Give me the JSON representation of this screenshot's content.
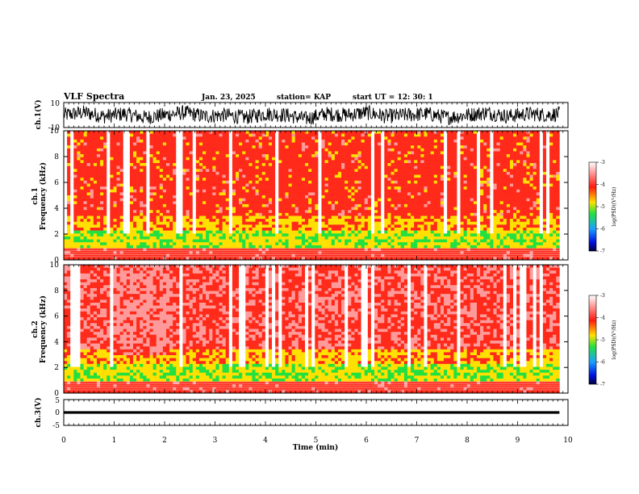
{
  "header": {
    "title": "VLF Spectra",
    "date": "Jan. 23, 2025",
    "station": "station= KAP",
    "start": "start  UT =   12: 30: 1"
  },
  "colors": {
    "spectrogram": [
      "#ffffff",
      "#ff9a9a",
      "#ff2a1a",
      "#ffe000",
      "#22e040",
      "#1aa0ff",
      "#0000a0"
    ],
    "trace": "#000000",
    "axes": "#000000"
  },
  "chart_data": [
    {
      "type": "line",
      "panel": "ch1-waveform",
      "ylabel": "ch.1(V)",
      "ylim": [
        -10,
        10
      ],
      "yticks": [
        "10",
        "-10"
      ],
      "xlim": [
        0,
        10
      ],
      "series": [
        {
          "x": [
            0,
            0.4,
            0.8,
            1.2,
            1.6,
            2.0,
            2.4,
            2.8,
            3.2,
            3.6,
            4.0,
            4.4,
            4.8,
            5.2,
            5.6,
            6.0,
            6.4,
            6.8,
            7.2,
            7.6,
            8.0,
            8.4,
            8.8,
            9.2,
            9.6,
            9.83
          ],
          "values": [
            0,
            2,
            -1,
            1,
            -2,
            0,
            2,
            -1,
            0,
            -2,
            1,
            0,
            -3,
            1,
            0,
            2,
            -1,
            0,
            1,
            -2,
            0,
            2,
            -1,
            1,
            0,
            1
          ]
        }
      ]
    },
    {
      "type": "heatmap",
      "panel": "ch1-spectrogram",
      "ylabel": "ch.1\nFrequency  (kHz)",
      "ylim": [
        0,
        10
      ],
      "yticks": [
        "0",
        "2",
        "4",
        "6",
        "8",
        "10"
      ],
      "xlim": [
        0,
        10
      ],
      "colorbar": {
        "label": "log(PSD)(V²/Hz)",
        "range": [
          -7,
          -3
        ],
        "ticks": [
          "-3",
          "-4",
          "-5",
          "-6",
          "-7"
        ]
      }
    },
    {
      "type": "heatmap",
      "panel": "ch2-spectrogram",
      "ylabel": "ch.2\nFrequency  (kHz)",
      "ylim": [
        0,
        10
      ],
      "yticks": [
        "0",
        "2",
        "4",
        "6",
        "8",
        "10"
      ],
      "xlim": [
        0,
        10
      ],
      "colorbar": {
        "label": "log(PSD)(V²/Hz)",
        "range": [
          -7,
          -3
        ],
        "ticks": [
          "-3",
          "-4",
          "-5",
          "-6",
          "-7"
        ]
      }
    },
    {
      "type": "line",
      "panel": "ch3-waveform",
      "ylabel": "ch.3(V)",
      "ylim": [
        -5,
        5
      ],
      "yticks": [
        "5",
        "0",
        "-5"
      ],
      "xlim": [
        0,
        10
      ],
      "xlabel": "Time  (min)",
      "xticks": [
        "0",
        "1",
        "2",
        "3",
        "4",
        "5",
        "6",
        "7",
        "8",
        "9",
        "10"
      ],
      "series": [
        {
          "x": [
            0,
            9.83
          ],
          "values": [
            0,
            0
          ]
        }
      ]
    }
  ]
}
